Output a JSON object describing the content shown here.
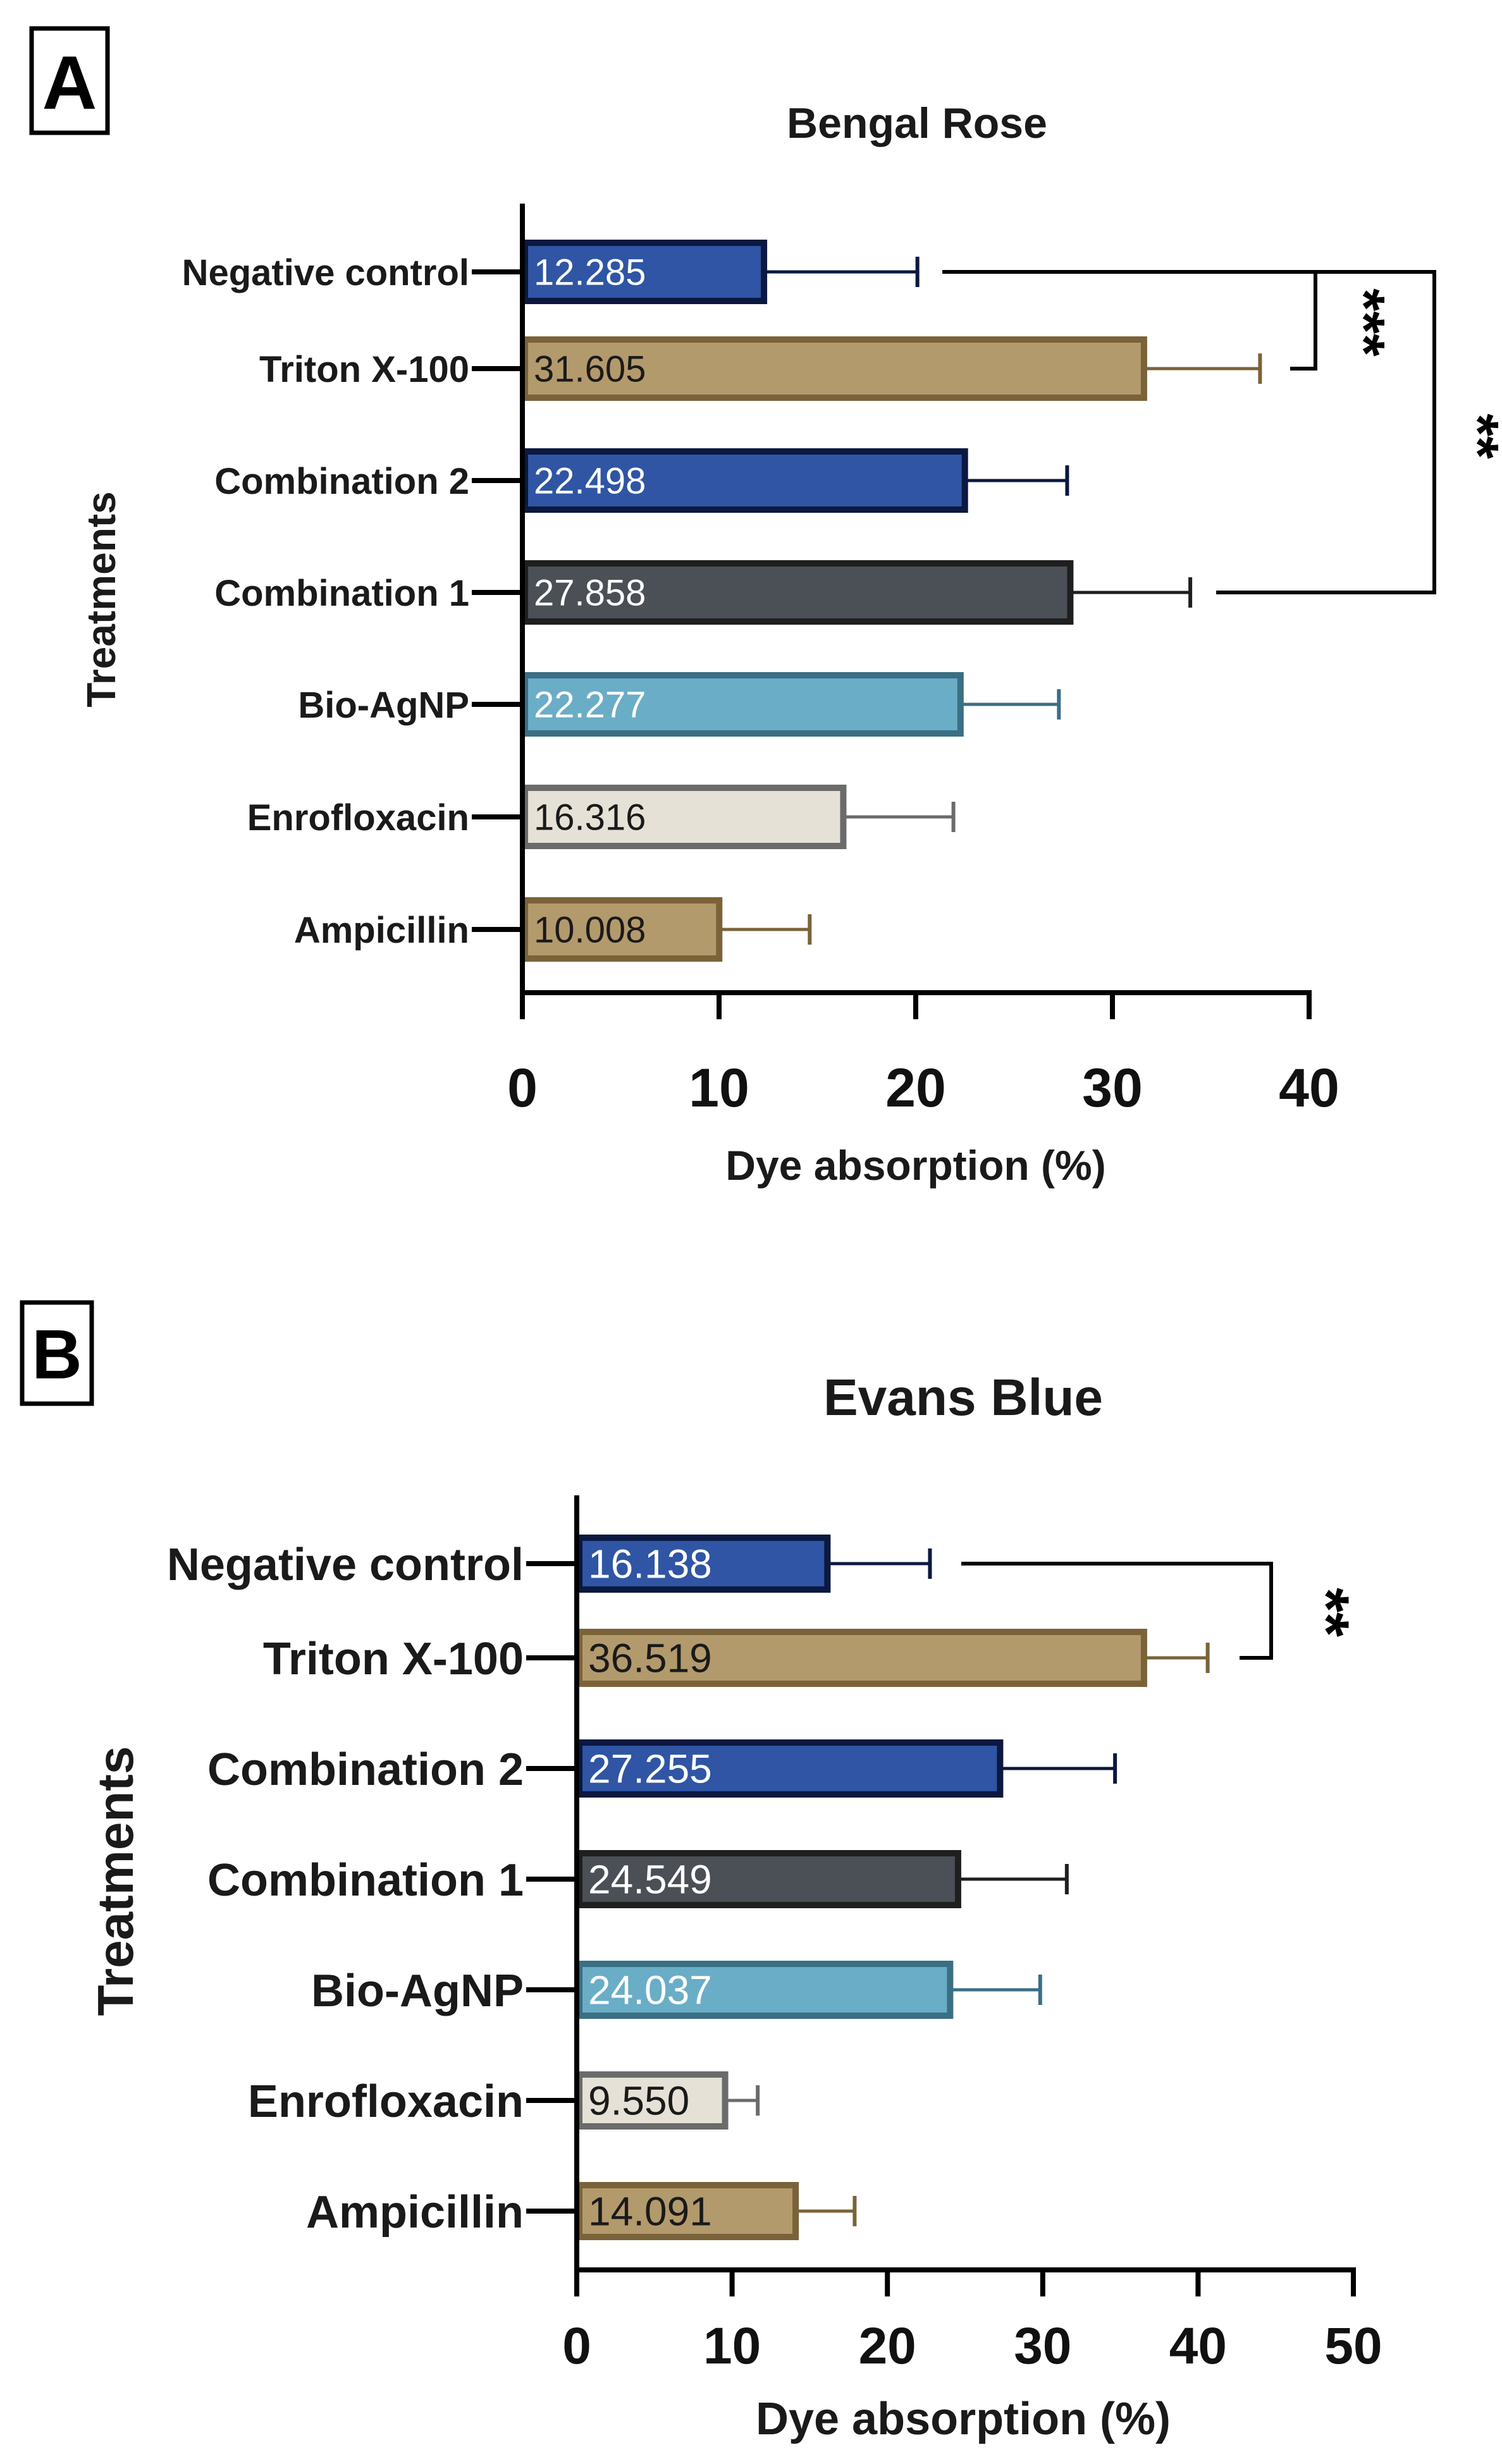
{
  "chart_data": [
    {
      "type": "bar",
      "orientation": "horizontal",
      "panel": "A",
      "title": "Bengal Rose",
      "xlabel": "Dye absorption (%)",
      "ylabel": "Treatments",
      "xlim": [
        0,
        40
      ],
      "xticks": [
        "0",
        "10",
        "20",
        "30",
        "40"
      ],
      "categories": [
        "Negative control",
        "Triton X-100",
        "Combination 2",
        "Combination 1",
        "Bio-AgNP",
        "Enrofloxacin",
        "Ampicillin"
      ],
      "values": [
        12.285,
        31.605,
        22.498,
        27.858,
        22.277,
        16.316,
        10.008
      ],
      "value_labels": [
        "12.285",
        "31.605",
        "22.498",
        "27.858",
        "22.277",
        "16.316",
        "10.008"
      ],
      "error": [
        7.8,
        5.9,
        5.2,
        6.1,
        5.0,
        5.6,
        4.6
      ],
      "colors": [
        "#2f55a4",
        "#b39a6c",
        "#2f55a4",
        "#4b4f56",
        "#6aadc7",
        "#e6e1d6",
        "#b39a6c"
      ],
      "border_colors": [
        "#0b1840",
        "#7a6339",
        "#0b1840",
        "#1f1f1f",
        "#3a6f84",
        "#6b6b6b",
        "#7a6339"
      ],
      "significance": [
        {
          "label": "***",
          "from": "Negative control",
          "to": "Triton X-100"
        },
        {
          "label": "**",
          "from": "Negative control",
          "to": "Combination 1"
        }
      ]
    },
    {
      "type": "bar",
      "orientation": "horizontal",
      "panel": "B",
      "title": "Evans Blue",
      "xlabel": "Dye absorption (%)",
      "ylabel": "Treatments",
      "xlim": [
        0,
        50
      ],
      "xticks": [
        "0",
        "10",
        "20",
        "30",
        "40",
        "50"
      ],
      "categories": [
        "Negative control",
        "Triton X-100",
        "Combination 2",
        "Combination 1",
        "Bio-AgNP",
        "Enrofloxacin",
        "Ampicillin"
      ],
      "values": [
        16.138,
        36.519,
        27.255,
        24.549,
        24.037,
        9.55,
        14.091
      ],
      "value_labels": [
        "16.138",
        "36.519",
        "27.255",
        "24.549",
        "24.037",
        "9.550",
        "14.091"
      ],
      "error": [
        6.6,
        4.1,
        7.4,
        7.0,
        5.8,
        2.1,
        3.8
      ],
      "colors": [
        "#2f55a4",
        "#b39a6c",
        "#2f55a4",
        "#4b4f56",
        "#6aadc7",
        "#e6e1d6",
        "#b39a6c"
      ],
      "border_colors": [
        "#0b1840",
        "#7a6339",
        "#0b1840",
        "#1f1f1f",
        "#3a6f84",
        "#6b6b6b",
        "#7a6339"
      ],
      "significance": [
        {
          "label": "**",
          "from": "Negative control",
          "to": "Triton X-100"
        }
      ]
    }
  ]
}
